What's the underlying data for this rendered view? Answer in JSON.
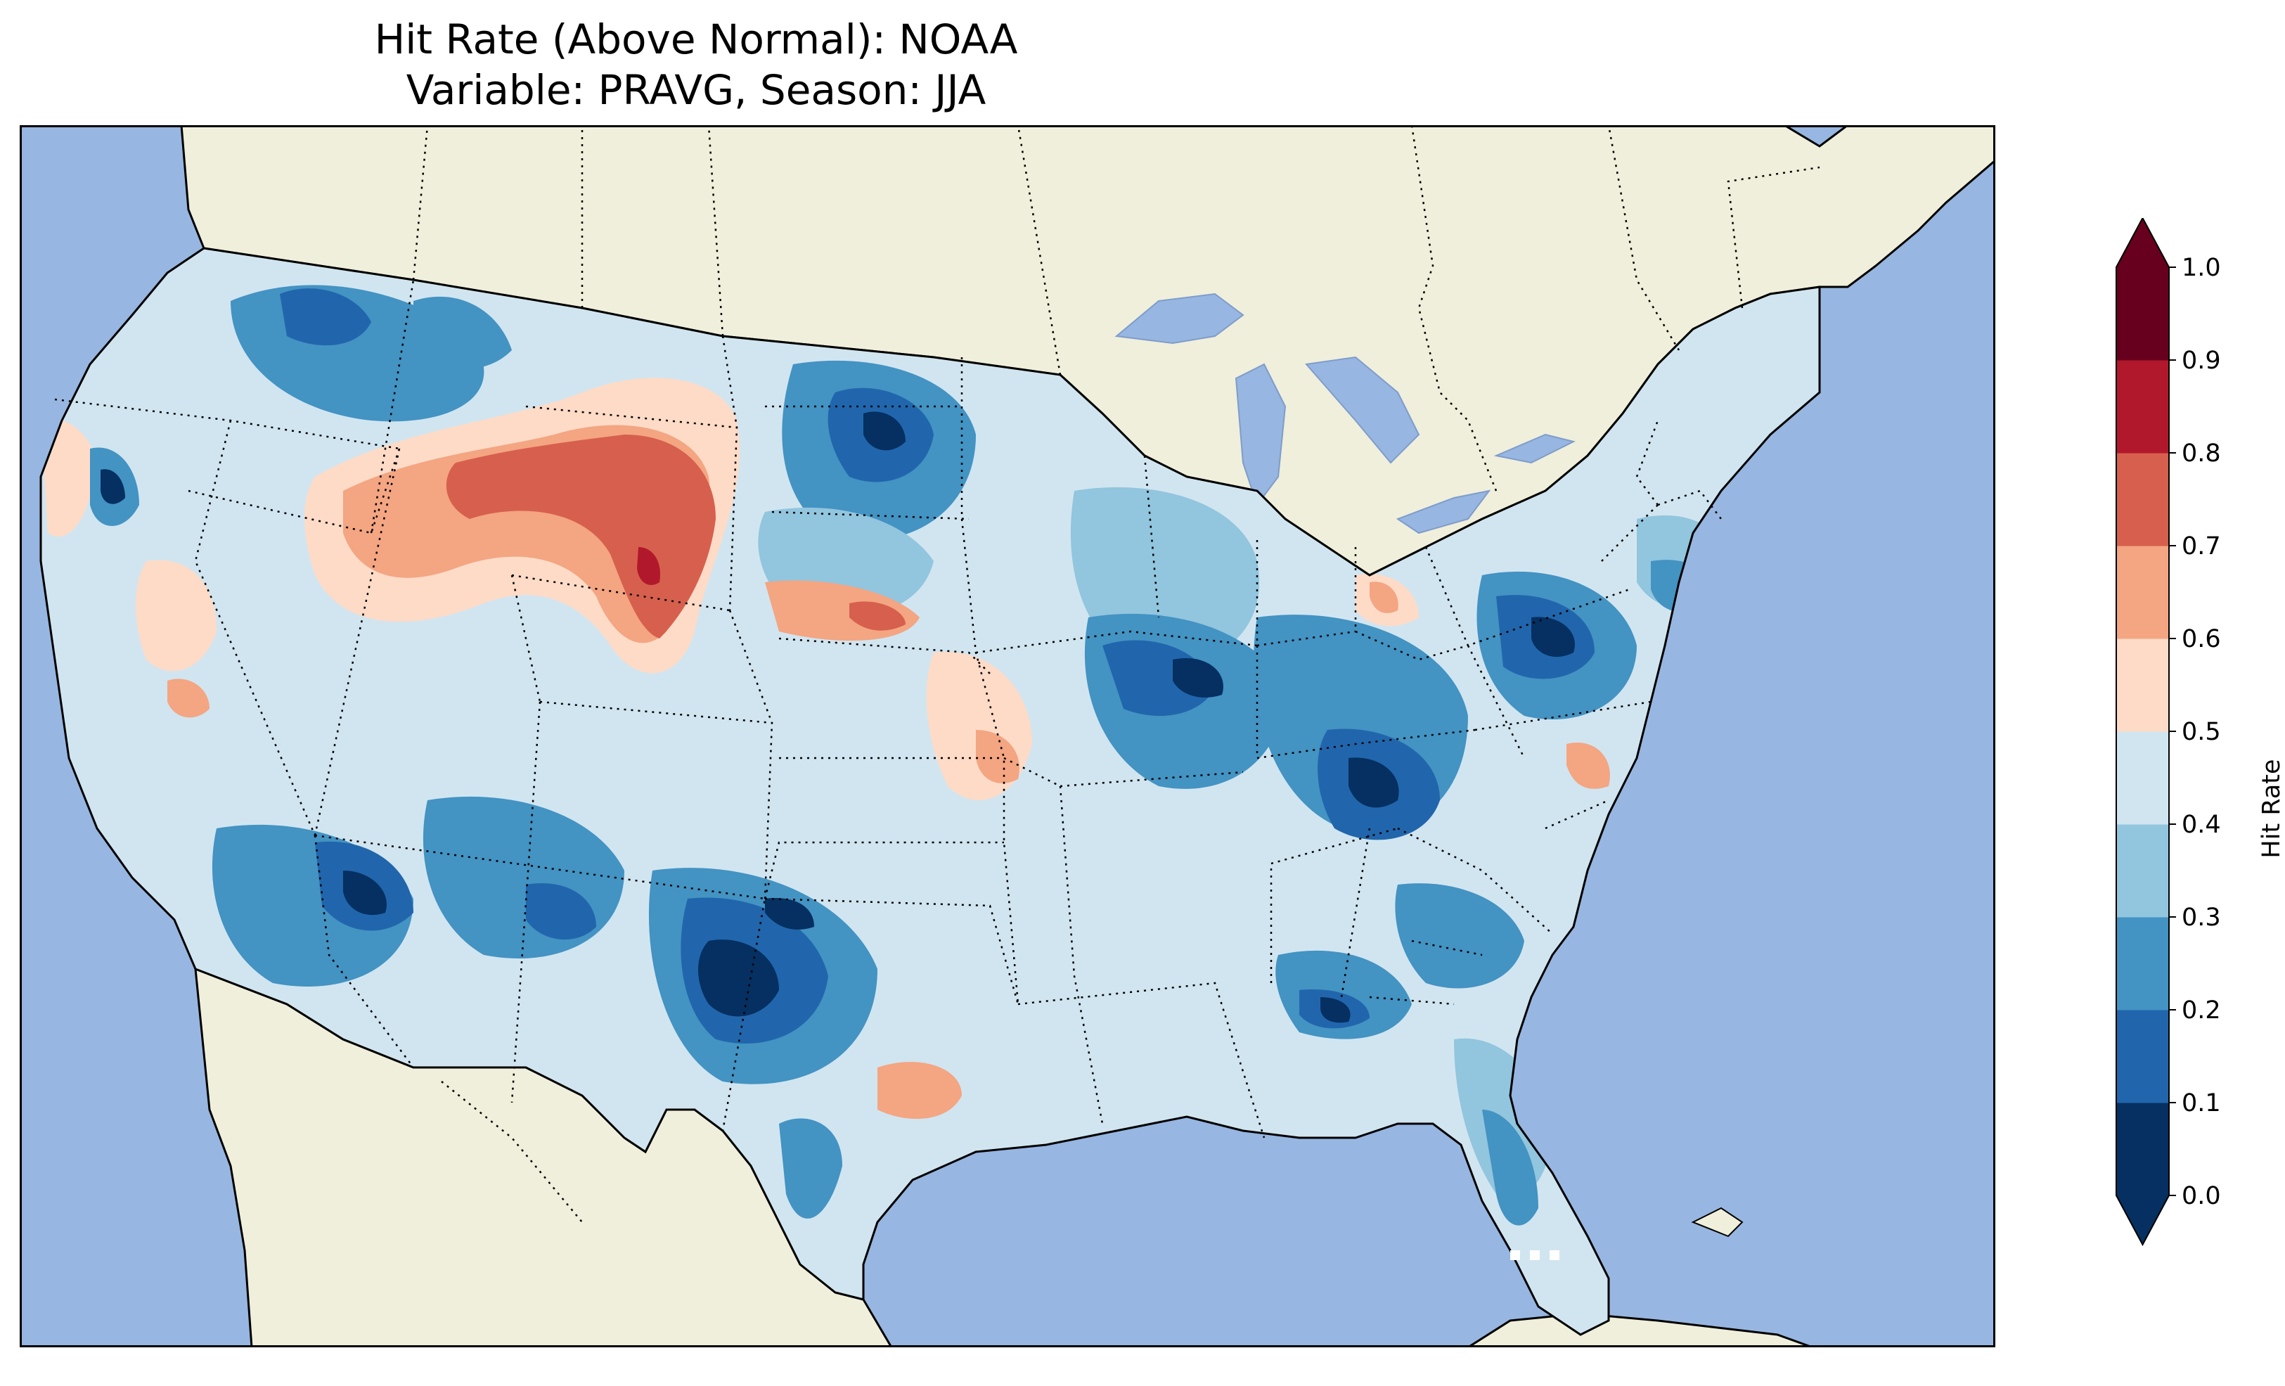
{
  "title": {
    "line1": "Hit Rate (Above Normal): NOAA",
    "line2": "Variable: PRAVG, Season: JJA"
  },
  "map": {
    "projection": "Lambert Conformal (CONUS)",
    "ocean_color": "#97b6e1",
    "land_color": "#efefdb",
    "coastline_color": "#000000",
    "border_style": "dotted"
  },
  "colorbar": {
    "label": "Hit Rate",
    "ticks": [
      "0.0",
      "0.1",
      "0.2",
      "0.3",
      "0.4",
      "0.5",
      "0.6",
      "0.7",
      "0.8",
      "0.9",
      "1.0"
    ],
    "colors": [
      "#053061",
      "#2166ac",
      "#4393c3",
      "#92c5de",
      "#d1e5f0",
      "#fddbc7",
      "#f4a582",
      "#d6604d",
      "#b2182b",
      "#67001f"
    ],
    "extend": "both"
  }
}
